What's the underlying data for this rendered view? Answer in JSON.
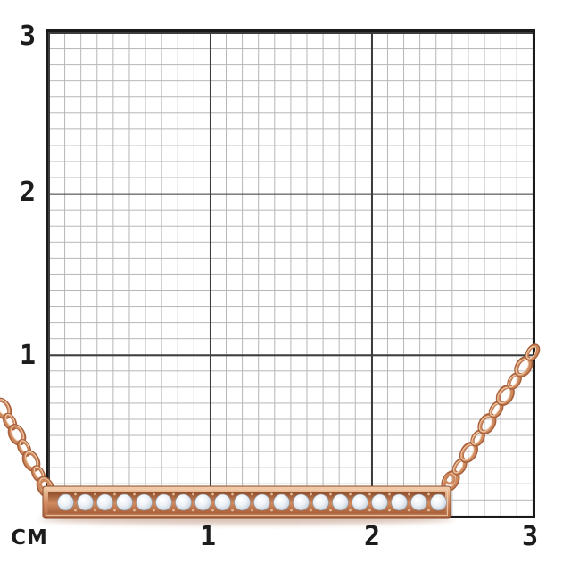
{
  "description": "Rose gold and diamond bar pendant necklace photographed on a centimeter measurement grid",
  "colors": {
    "background": "#ffffff",
    "text": "#1c1c1c",
    "grid_minor": "#b5b5b5",
    "grid_major": "#3d3d3d",
    "grid_border": "#1a1a1a",
    "gold_light": "#f3cfae",
    "gold_mid": "#d08a5f",
    "gold_dark": "#a8613b",
    "gold_deep": "#8a4a28",
    "diamond_light": "#eef2f7",
    "diamond_mid": "#ccd6e0",
    "diamond_dark": "#8e99a6"
  },
  "grid": {
    "unit_label": "CM",
    "row_labels": [
      "3",
      "2",
      "1"
    ],
    "col_labels": [
      "1",
      "2",
      "3"
    ],
    "cm_per_major_division": 1,
    "minor_divisions_per_cm": 10
  },
  "necklace": {
    "diamond_count": 20,
    "bar_length_cm": 2.5,
    "chain_left_link_count": 7,
    "chain_right_link_count": 10
  }
}
